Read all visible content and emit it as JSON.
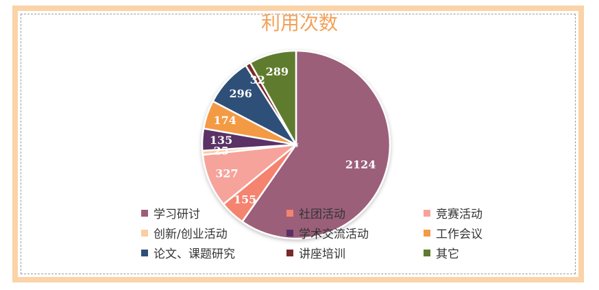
{
  "chart_data": {
    "type": "pie",
    "title": "利用次数",
    "slices": [
      {
        "label": "学习研讨",
        "value": 2124,
        "color": "#9b5e7a"
      },
      {
        "label": "社团活动",
        "value": 155,
        "color": "#f4836f"
      },
      {
        "label": "竞赛活动",
        "value": 327,
        "color": "#f6a39b"
      },
      {
        "label": "创新/创业活动",
        "value": 25,
        "color": "#fbcda0"
      },
      {
        "label": "学术交流活动",
        "value": 135,
        "color": "#5a3166"
      },
      {
        "label": "工作会议",
        "value": 174,
        "color": "#f39a45"
      },
      {
        "label": "论文、课题研究",
        "value": 296,
        "color": "#2e4f78"
      },
      {
        "label": "讲座培训",
        "value": 32,
        "color": "#7a2a2a"
      },
      {
        "label": "其它",
        "value": 289,
        "color": "#5e7b2e"
      }
    ],
    "legend_position": "bottom"
  }
}
